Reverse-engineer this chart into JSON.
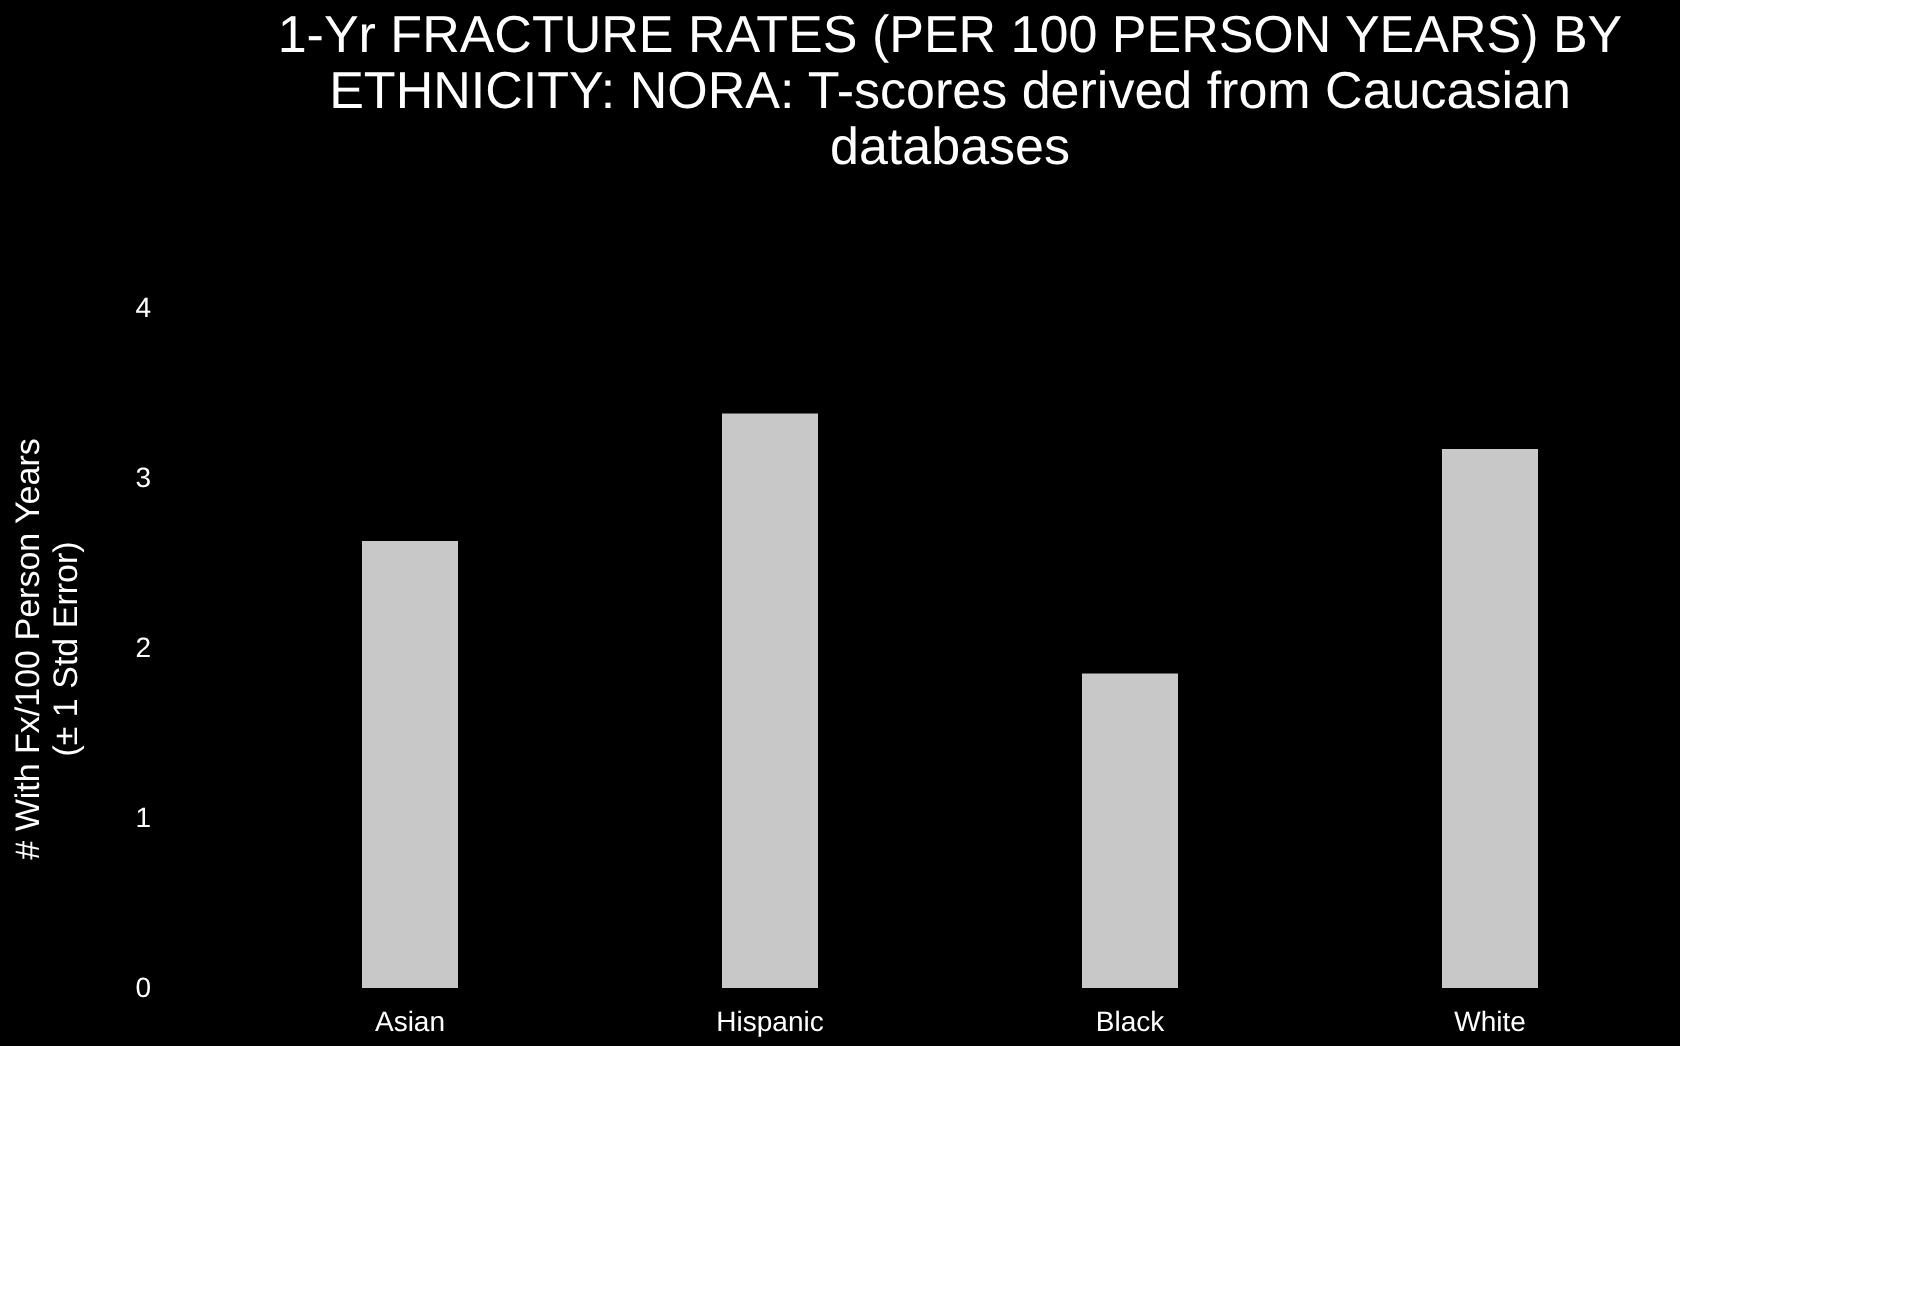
{
  "chart_data": {
    "type": "bar",
    "title": "1-Yr FRACTURE RATES (PER 100 PERSON YEARS) BY ETHNICITY: NORA: T-scores derived from Caucasian databases",
    "ylabel": "# With Fx/100 Person Years\n(± 1 Std Error)",
    "categories": [
      "Asian",
      "Hispanic",
      "Black",
      "White"
    ],
    "values": [
      2.63,
      3.38,
      1.85,
      3.17
    ],
    "color": "#c8c8c8",
    "ylim": [
      0,
      4
    ],
    "yticks": [
      0,
      1,
      2,
      3,
      4
    ],
    "grid": false
  }
}
